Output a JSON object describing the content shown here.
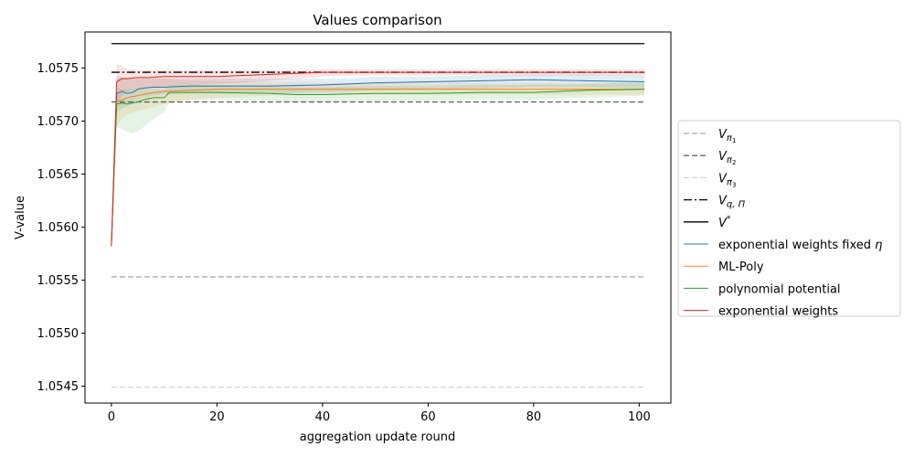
{
  "chart_data": {
    "type": "line",
    "title": "Values comparison",
    "xlabel": "aggregation update round",
    "ylabel": "V-value",
    "xlim": [
      -5,
      106
    ],
    "ylim": [
      1.05434,
      1.05784
    ],
    "x_ticks": [
      0,
      20,
      40,
      60,
      80,
      100
    ],
    "y_ticks": [
      1.0545,
      1.055,
      1.0555,
      1.056,
      1.0565,
      1.057,
      1.0575
    ],
    "y_tick_labels": [
      "1.0545",
      "1.0550",
      "1.0555",
      "1.0560",
      "1.0565",
      "1.0570",
      "1.0575"
    ],
    "grid": false,
    "legend_position": "center-right, outside plot",
    "reference_lines": [
      {
        "name": "V_{π1}",
        "label_main": "V",
        "label_sub": "π",
        "label_subsub": "1",
        "y": 1.05553,
        "color": "#aaaaaa",
        "dash": "dashed"
      },
      {
        "name": "V_{π2}",
        "label_main": "V",
        "label_sub": "π",
        "label_subsub": "2",
        "y": 1.05718,
        "color": "#666666",
        "dash": "dashed"
      },
      {
        "name": "V_{π3}",
        "label_main": "V",
        "label_sub": "π",
        "label_subsub": "3",
        "y": 1.05449,
        "color": "#d0d0d0",
        "dash": "dashed"
      },
      {
        "name": "V_{q,Π}",
        "label_main": "V",
        "label_sub": "q, Π",
        "label_subsub": "",
        "y": 1.05746,
        "color": "#000000",
        "dash": "dashdot"
      },
      {
        "name": "V*",
        "label_main": "V",
        "label_sup": "*",
        "label_sub": "",
        "label_subsub": "",
        "y": 1.05773,
        "color": "#000000",
        "dash": "solid"
      }
    ],
    "x_range_ref": [
      0,
      101
    ],
    "series": [
      {
        "name": "exponential weights fixed η",
        "label_text": "exponential weights fixed ",
        "label_italic": "η",
        "color": "#1f77b4",
        "x": [
          0,
          1,
          2,
          3,
          4,
          5,
          6,
          8,
          10,
          15,
          20,
          30,
          40,
          45,
          50,
          60,
          70,
          80,
          90,
          101
        ],
        "y": [
          1.05582,
          1.05726,
          1.05728,
          1.05726,
          1.05727,
          1.0573,
          1.05731,
          1.05732,
          1.05732,
          1.05733,
          1.05733,
          1.05733,
          1.05734,
          1.05735,
          1.05736,
          1.05737,
          1.05738,
          1.05739,
          1.05738,
          1.05737
        ],
        "band_upper": [
          1.05582,
          1.05742,
          1.05742,
          1.0574,
          1.0574,
          1.0574,
          1.0574,
          1.0574,
          1.0574,
          1.0574,
          1.0574,
          1.0574,
          1.0574,
          1.0574,
          1.05742,
          1.05742,
          1.05743,
          1.05744,
          1.05744,
          1.05743
        ],
        "band_lower": [
          1.05582,
          1.05708,
          1.05712,
          1.05714,
          1.05716,
          1.0572,
          1.05722,
          1.05724,
          1.05725,
          1.05726,
          1.05726,
          1.05726,
          1.05727,
          1.05728,
          1.05729,
          1.0573,
          1.05731,
          1.05732,
          1.05732,
          1.05731
        ]
      },
      {
        "name": "ML-Poly",
        "color": "#ff7f0e",
        "x": [
          0,
          1,
          2,
          3,
          4,
          5,
          7,
          10,
          15,
          20,
          30,
          40,
          50,
          60,
          70,
          80,
          90,
          101
        ],
        "y": [
          1.05582,
          1.05718,
          1.0572,
          1.05722,
          1.05723,
          1.05724,
          1.05726,
          1.05728,
          1.05729,
          1.0573,
          1.0573,
          1.0573,
          1.0573,
          1.0573,
          1.0573,
          1.0573,
          1.0573,
          1.0573
        ],
        "band_upper": [
          1.05582,
          1.0574,
          1.0574,
          1.0574,
          1.0574,
          1.0574,
          1.0574,
          1.0574,
          1.05738,
          1.05738,
          1.05737,
          1.05736,
          1.05736,
          1.05736,
          1.05736,
          1.05736,
          1.05736,
          1.05736
        ],
        "band_lower": [
          1.05582,
          1.05696,
          1.05702,
          1.05706,
          1.05708,
          1.0571,
          1.05712,
          1.05716,
          1.0572,
          1.05722,
          1.05724,
          1.05725,
          1.05725,
          1.05725,
          1.05725,
          1.05725,
          1.05725,
          1.05725
        ]
      },
      {
        "name": "polynomial potential",
        "color": "#2ca02c",
        "x": [
          0,
          1,
          2,
          3,
          4,
          5,
          6,
          8,
          10,
          11,
          15,
          20,
          30,
          35,
          40,
          50,
          60,
          70,
          80,
          90,
          101
        ],
        "y": [
          1.05582,
          1.05716,
          1.05717,
          1.05716,
          1.05717,
          1.05718,
          1.0572,
          1.05722,
          1.05722,
          1.05727,
          1.05727,
          1.05727,
          1.05726,
          1.05725,
          1.05725,
          1.05726,
          1.05726,
          1.05727,
          1.05727,
          1.05729,
          1.0573
        ],
        "band_upper": [
          1.05582,
          1.0573,
          1.0573,
          1.0573,
          1.0573,
          1.0573,
          1.0573,
          1.0573,
          1.0573,
          1.05734,
          1.05734,
          1.05734,
          1.05733,
          1.05732,
          1.05732,
          1.05733,
          1.05733,
          1.05734,
          1.05734,
          1.05735,
          1.05736
        ],
        "band_lower": [
          1.05582,
          1.05695,
          1.05692,
          1.0569,
          1.05688,
          1.0569,
          1.05694,
          1.05702,
          1.05708,
          1.05718,
          1.0572,
          1.0572,
          1.05719,
          1.05718,
          1.05718,
          1.05719,
          1.05719,
          1.0572,
          1.0572,
          1.05722,
          1.05724
        ]
      },
      {
        "name": "exponential weights",
        "color": "#d62728",
        "x": [
          0,
          1,
          2,
          3,
          5,
          7,
          10,
          15,
          20,
          25,
          30,
          35,
          40,
          45,
          50,
          60,
          70,
          80,
          90,
          101
        ],
        "y": [
          1.05582,
          1.05737,
          1.0574,
          1.0574,
          1.05741,
          1.05741,
          1.05742,
          1.05742,
          1.05742,
          1.05743,
          1.05744,
          1.05745,
          1.05746,
          1.05746,
          1.05746,
          1.05746,
          1.05746,
          1.05746,
          1.05746,
          1.05746
        ],
        "band_upper": [
          1.05582,
          1.05754,
          1.05752,
          1.05749,
          1.05748,
          1.05748,
          1.05748,
          1.05748,
          1.05748,
          1.05748,
          1.05748,
          1.05748,
          1.05749,
          1.05749,
          1.05749,
          1.05749,
          1.05749,
          1.05749,
          1.05749,
          1.05749
        ],
        "band_lower": [
          1.05582,
          1.05716,
          1.05724,
          1.05728,
          1.0573,
          1.05731,
          1.05733,
          1.05734,
          1.05735,
          1.05736,
          1.05738,
          1.0574,
          1.05742,
          1.05743,
          1.05743,
          1.05743,
          1.05743,
          1.05743,
          1.05743,
          1.05743
        ]
      }
    ]
  }
}
